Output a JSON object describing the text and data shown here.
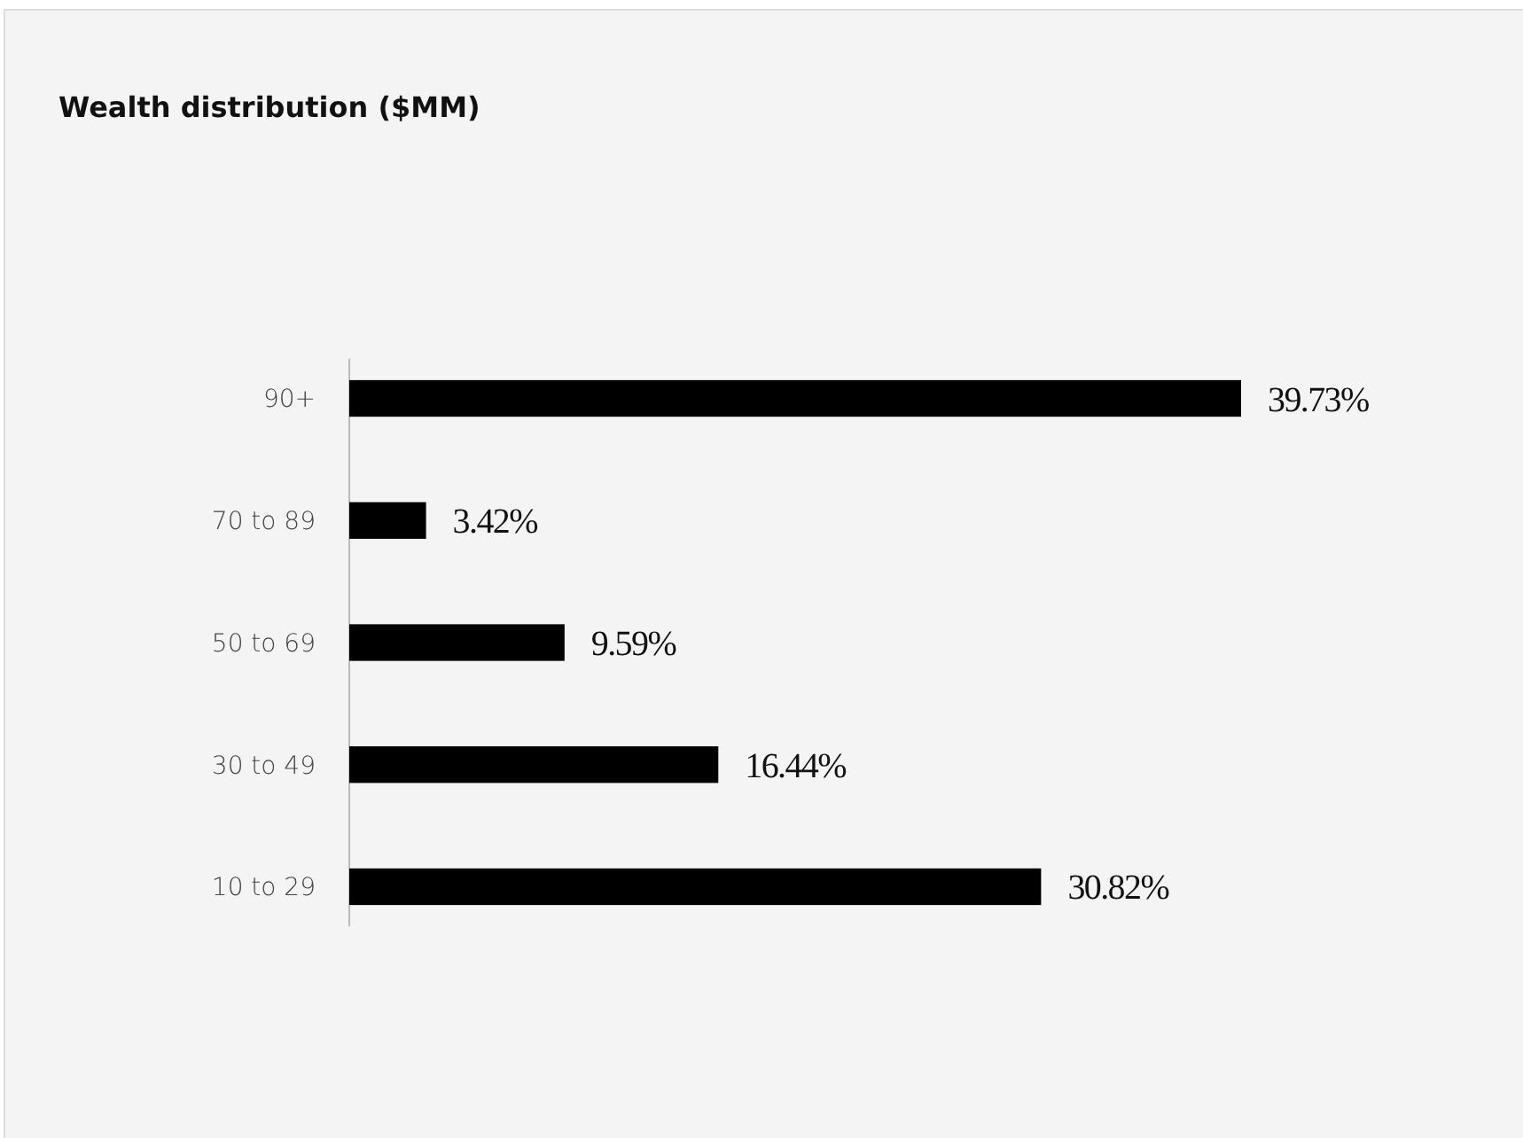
{
  "chart_data": {
    "type": "bar",
    "orientation": "horizontal",
    "title": "Wealth distribution ($MM)",
    "categories": [
      "90+",
      "70 to 89",
      "50 to 69",
      "30 to 49",
      "10 to 29"
    ],
    "values": [
      39.73,
      3.42,
      9.59,
      16.44,
      30.82
    ],
    "value_labels": [
      "39.73%",
      "3.42%",
      "9.59%",
      "16.44%",
      "30.82%"
    ],
    "color": "#000000"
  }
}
